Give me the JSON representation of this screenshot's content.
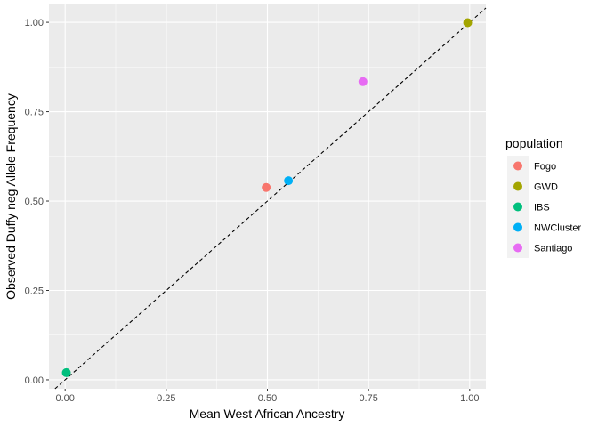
{
  "chart_data": {
    "type": "scatter",
    "title": "",
    "xlabel": "Mean West African Ancestry",
    "ylabel": "Observed Duffy neg Allele Frequency",
    "xlim": [
      -0.04,
      1.04
    ],
    "ylim": [
      -0.025,
      1.05
    ],
    "x_ticks": [
      0.0,
      0.25,
      0.5,
      0.75,
      1.0
    ],
    "x_tick_labels": [
      "0.00",
      "0.25",
      "0.50",
      "0.75",
      "1.00"
    ],
    "y_ticks": [
      0.0,
      0.25,
      0.5,
      0.75,
      1.0
    ],
    "y_tick_labels": [
      "0.00",
      "0.25",
      "0.50",
      "0.75",
      "1.00"
    ],
    "grid": true,
    "reference_line": {
      "type": "identity",
      "style": "dashed",
      "color": "#000000"
    },
    "legend": {
      "title": "population",
      "position": "right"
    },
    "series": [
      {
        "name": "Fogo",
        "color": "#F8766D",
        "x": [
          0.497
        ],
        "y": [
          0.538
        ]
      },
      {
        "name": "GWD",
        "color": "#A3A500",
        "x": [
          0.995
        ],
        "y": [
          0.999
        ]
      },
      {
        "name": "IBS",
        "color": "#00BF7D",
        "x": [
          0.003
        ],
        "y": [
          0.02
        ]
      },
      {
        "name": "NWCluster",
        "color": "#00B0F6",
        "x": [
          0.552
        ],
        "y": [
          0.557
        ]
      },
      {
        "name": "Santiago",
        "color": "#E76BF3",
        "x": [
          0.736
        ],
        "y": [
          0.834
        ]
      }
    ]
  }
}
